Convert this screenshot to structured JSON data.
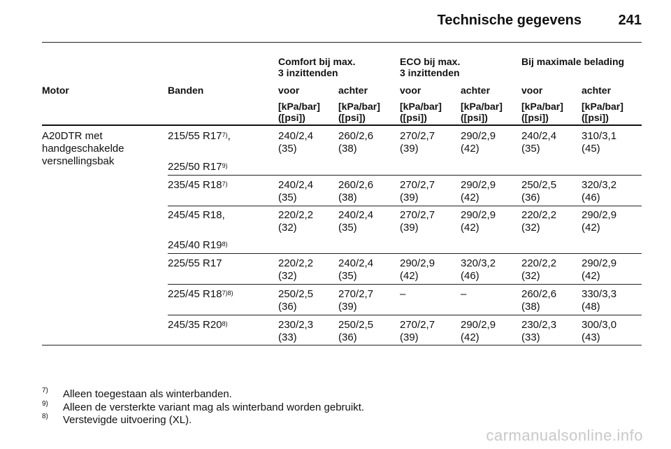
{
  "header": {
    "title": "Technische gegevens",
    "page": "241"
  },
  "groups": [
    {
      "line1": "Comfort bij max.",
      "line2": "3 inzittenden"
    },
    {
      "line1": "ECO bij max.",
      "line2": "3 inzittenden"
    },
    {
      "line1": "Bij maximale belading",
      "line2": ""
    }
  ],
  "columns": {
    "motor": "Motor",
    "banden": "Banden",
    "sub": [
      "voor",
      "achter",
      "voor",
      "achter",
      "voor",
      "achter"
    ],
    "unit1": "[kPa/bar]",
    "unit2": "([psi])"
  },
  "motor_desc": [
    "A20DTR met",
    "handgeschakelde",
    "versnellingsbak"
  ],
  "rows": [
    {
      "tire": "215/55 R17",
      "tire_sup": "7)",
      "tire_suffix": ",",
      "tire2": "225/50 R17",
      "tire2_sup": "9)",
      "vals": [
        [
          "240/2,4",
          "(35)"
        ],
        [
          "260/2,6",
          "(38)"
        ],
        [
          "270/2,7",
          "(39)"
        ],
        [
          "290/2,9",
          "(42)"
        ],
        [
          "240/2,4",
          "(35)"
        ],
        [
          "310/3,1",
          "(45)"
        ]
      ]
    },
    {
      "tire": "235/45 R18",
      "tire_sup": "7)",
      "tire_suffix": "",
      "tire2": "",
      "tire2_sup": "",
      "vals": [
        [
          "240/2,4",
          "(35)"
        ],
        [
          "260/2,6",
          "(38)"
        ],
        [
          "270/2,7",
          "(39)"
        ],
        [
          "290/2,9",
          "(42)"
        ],
        [
          "250/2,5",
          "(36)"
        ],
        [
          "320/3,2",
          "(46)"
        ]
      ]
    },
    {
      "tire": "245/45 R18,",
      "tire_sup": "",
      "tire_suffix": "",
      "tire2": "245/40 R19",
      "tire2_sup": "8)",
      "vals": [
        [
          "220/2,2",
          "(32)"
        ],
        [
          "240/2,4",
          "(35)"
        ],
        [
          "270/2,7",
          "(39)"
        ],
        [
          "290/2,9",
          "(42)"
        ],
        [
          "220/2,2",
          "(32)"
        ],
        [
          "290/2,9",
          "(42)"
        ]
      ]
    },
    {
      "tire": "225/55 R17",
      "tire_sup": "",
      "tire_suffix": "",
      "tire2": "",
      "tire2_sup": "",
      "vals": [
        [
          "220/2,2",
          "(32)"
        ],
        [
          "240/2,4",
          "(35)"
        ],
        [
          "290/2,9",
          "(42)"
        ],
        [
          "320/3,2",
          "(46)"
        ],
        [
          "220/2,2",
          "(32)"
        ],
        [
          "290/2,9",
          "(42)"
        ]
      ]
    },
    {
      "tire": "225/45 R18",
      "tire_sup": "7)8)",
      "tire_suffix": "",
      "tire2": "",
      "tire2_sup": "",
      "vals": [
        [
          "250/2,5",
          "(36)"
        ],
        [
          "270/2,7",
          "(39)"
        ],
        [
          "–",
          ""
        ],
        [
          "–",
          ""
        ],
        [
          "260/2,6",
          "(38)"
        ],
        [
          "330/3,3",
          "(48)"
        ]
      ]
    },
    {
      "tire": "245/35 R20",
      "tire_sup": "8)",
      "tire_suffix": "",
      "tire2": "",
      "tire2_sup": "",
      "vals": [
        [
          "230/2,3",
          "(33)"
        ],
        [
          "250/2,5",
          "(36)"
        ],
        [
          "270/2,7",
          "(39)"
        ],
        [
          "290/2,9",
          "(42)"
        ],
        [
          "230/2,3",
          "(33)"
        ],
        [
          "300/3,0",
          "(43)"
        ]
      ]
    }
  ],
  "footnotes": [
    {
      "num": "7)",
      "text": "Alleen toegestaan als winterbanden."
    },
    {
      "num": "9)",
      "text": "Alleen de versterkte variant mag als winterband worden gebruikt."
    },
    {
      "num": "8)",
      "text": "Verstevigde uitvoering (XL)."
    }
  ],
  "watermark": "carmanualsonline.info"
}
